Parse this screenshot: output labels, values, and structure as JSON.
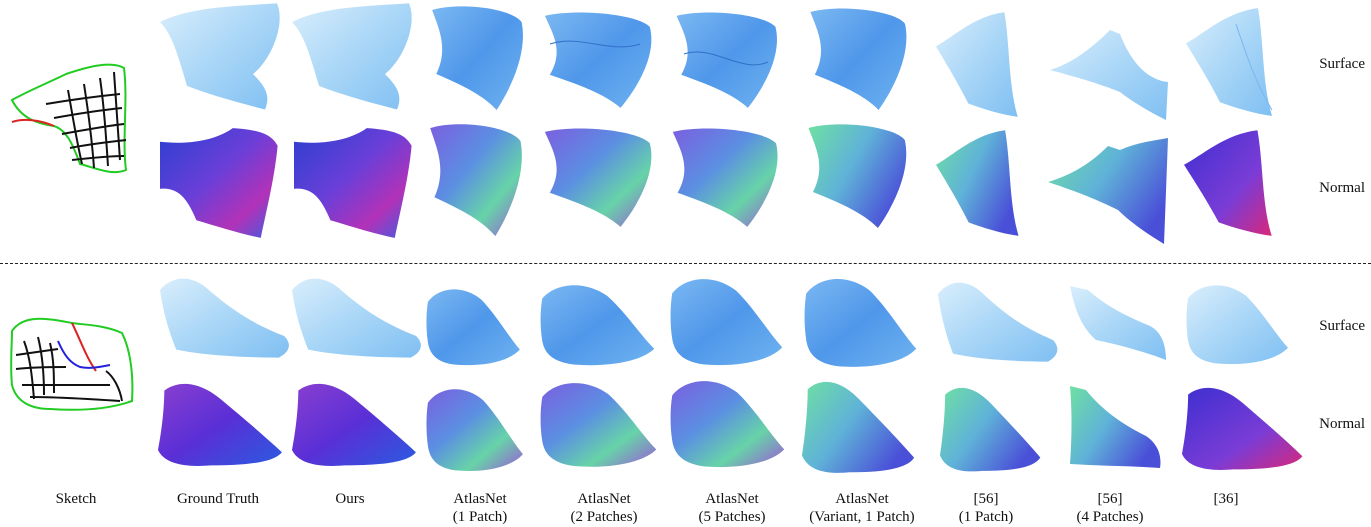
{
  "figure": {
    "columns": [
      "Sketch",
      "Ground Truth",
      "Ours",
      "AtlasNet\n(1 Patch)",
      "AtlasNet\n(2 Patches)",
      "AtlasNet\n(5 Patches)",
      "AtlasNet\n(Variant, 1 Patch)",
      "[56]\n(1 Patch)",
      "[56]\n(4 Patches)",
      "[36]"
    ],
    "row_labels": {
      "top_surface": "Surface",
      "top_normal": "Normal",
      "bottom_surface": "Surface",
      "bottom_normal": "Normal"
    },
    "colors": {
      "surface_light": "#cfe8fb",
      "surface_mid": "#9ccff5",
      "surface_dark": "#4e9be8",
      "normal_blue": "#3a4fd8",
      "normal_purple": "#8a35c7",
      "normal_magenta": "#d2287f",
      "normal_green": "#5fd3a6",
      "sketch_green": "#22cc22",
      "sketch_red": "#dd2222",
      "sketch_blue": "#2222dd",
      "sketch_black": "#111111"
    }
  }
}
